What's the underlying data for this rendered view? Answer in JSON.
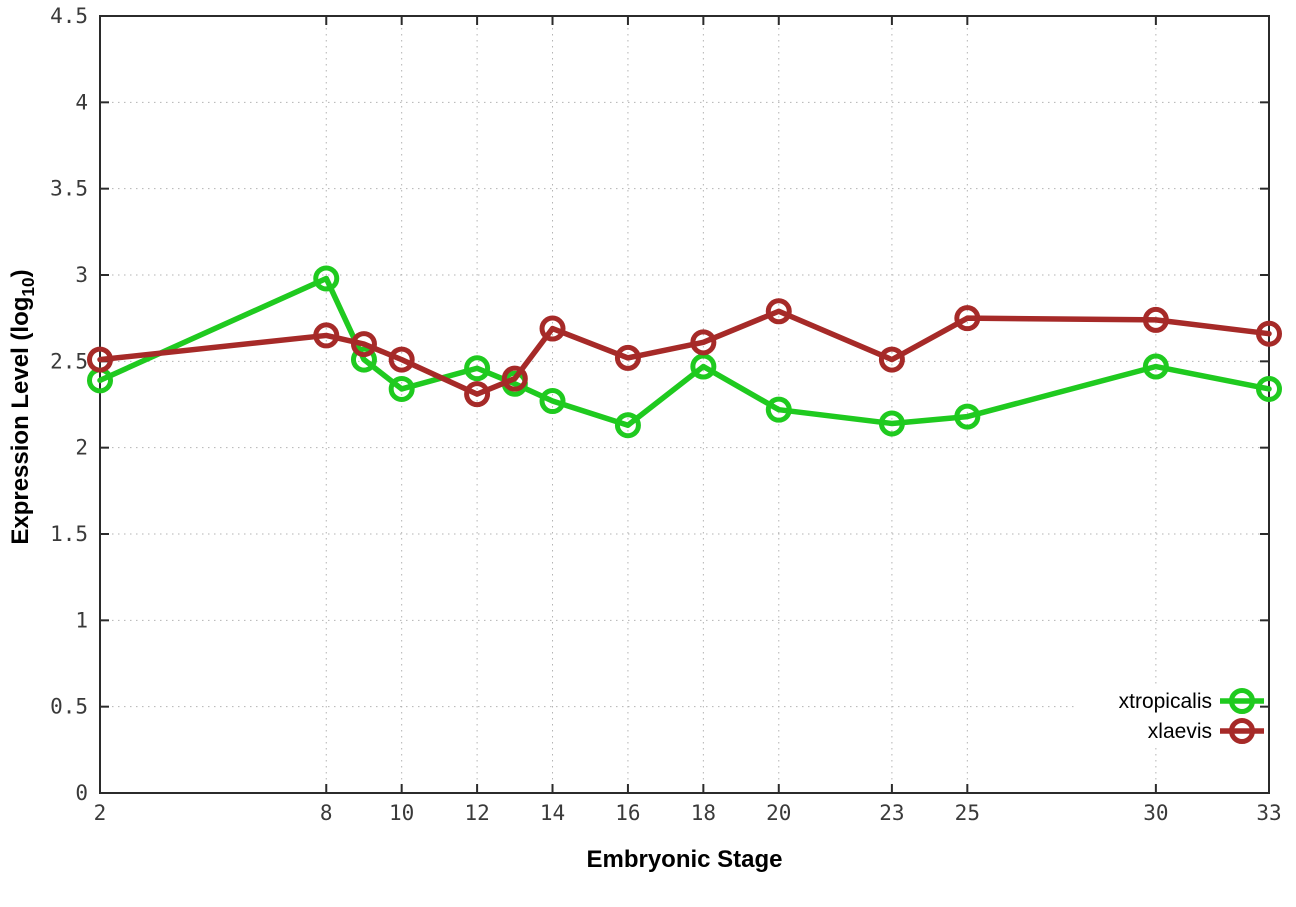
{
  "chart_data": {
    "type": "line",
    "title": "",
    "xlabel": "Embryonic Stage",
    "ylabel": {
      "prefix": "Expression Level (log",
      "sub": "10",
      "suffix": ")"
    },
    "xlim": [
      2,
      33
    ],
    "ylim": [
      0,
      4.5
    ],
    "x_ticks": [
      2,
      8,
      10,
      12,
      14,
      16,
      18,
      20,
      23,
      25,
      30,
      33
    ],
    "y_ticks": [
      0,
      0.5,
      1,
      1.5,
      2,
      2.5,
      3,
      3.5,
      4,
      4.5
    ],
    "grid": true,
    "legend_position": "inside-bottom-right",
    "x": [
      2,
      8,
      9,
      10,
      12,
      13,
      14,
      16,
      18,
      20,
      23,
      25,
      30,
      33
    ],
    "series": [
      {
        "name": "xtropicalis",
        "color": "#1fca1f",
        "values": [
          2.39,
          2.98,
          2.51,
          2.34,
          2.46,
          2.37,
          2.27,
          2.13,
          2.47,
          2.22,
          2.14,
          2.18,
          2.47,
          2.34
        ]
      },
      {
        "name": "xlaevis",
        "color": "#a62a28",
        "values": [
          2.51,
          2.65,
          2.6,
          2.51,
          2.31,
          2.4,
          2.69,
          2.52,
          2.61,
          2.79,
          2.51,
          2.75,
          2.74,
          2.66
        ]
      }
    ],
    "colors": {
      "axis": "#2b2b2b",
      "grid": "#b3b3b3",
      "tick_label": "#3a3a3a",
      "legend_text": "#000000",
      "background": "#ffffff"
    }
  }
}
